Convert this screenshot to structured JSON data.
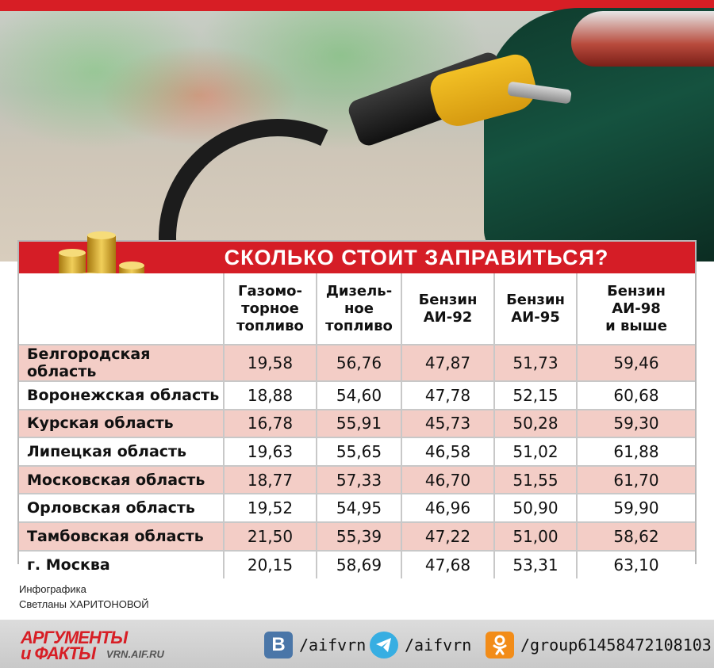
{
  "title": "СКОЛЬКО СТОИТ ЗАПРАВИТЬСЯ?",
  "columns": [
    {
      "line1": "Газомо-",
      "line2": "торное",
      "line3": "топливо"
    },
    {
      "line1": "Дизель-",
      "line2": "ное",
      "line3": "топливо"
    },
    {
      "line1": "Бензин",
      "line2": "АИ-92",
      "line3": ""
    },
    {
      "line1": "Бензин",
      "line2": "АИ-95",
      "line3": ""
    },
    {
      "line1": "Бензин",
      "line2": "АИ-98",
      "line3": "и выше"
    }
  ],
  "rows": [
    {
      "region": "Белгородская область",
      "values": [
        "19,58",
        "56,76",
        "47,87",
        "51,73",
        "59,46"
      ]
    },
    {
      "region": "Воронежская область",
      "values": [
        "18,88",
        "54,60",
        "47,78",
        "52,15",
        "60,68"
      ]
    },
    {
      "region": "Курская область",
      "values": [
        "16,78",
        "55,91",
        "45,73",
        "50,28",
        "59,30"
      ]
    },
    {
      "region": "Липецкая область",
      "values": [
        "19,63",
        "55,65",
        "46,58",
        "51,02",
        "61,88"
      ]
    },
    {
      "region": "Московская область",
      "values": [
        "18,77",
        "57,33",
        "46,70",
        "51,55",
        "61,70"
      ]
    },
    {
      "region": "Орловская область",
      "values": [
        "19,52",
        "54,95",
        "46,96",
        "50,90",
        "59,90"
      ]
    },
    {
      "region": "Тамбовская область",
      "values": [
        "21,50",
        "55,39",
        "47,22",
        "51,00",
        "58,62"
      ]
    },
    {
      "region": "г. Москва",
      "values": [
        "20,15",
        "58,69",
        "47,68",
        "53,31",
        "63,10"
      ]
    }
  ],
  "credit": {
    "line1": "Инфографика",
    "line2": "Светланы ХАРИТОНОВОЙ"
  },
  "footer": {
    "logo_line1": "АРГУМЕНТЫ",
    "logo_line2": "и ФАКТЫ",
    "logo_site": "VRN.AIF.RU",
    "vk_letter": "B",
    "vk_handle": "/aifvrn",
    "tg_handle": "/aifvrn",
    "ok_handle": "/group61458472108103"
  },
  "colors": {
    "accent": "#d51d26",
    "row_alt": "#f3cdc6",
    "vk": "#4a76a8",
    "telegram": "#37aee2",
    "ok": "#f28c18"
  },
  "icons": [
    "coins-stack-icon",
    "vk-icon",
    "telegram-icon",
    "odnoklassniki-icon"
  ]
}
